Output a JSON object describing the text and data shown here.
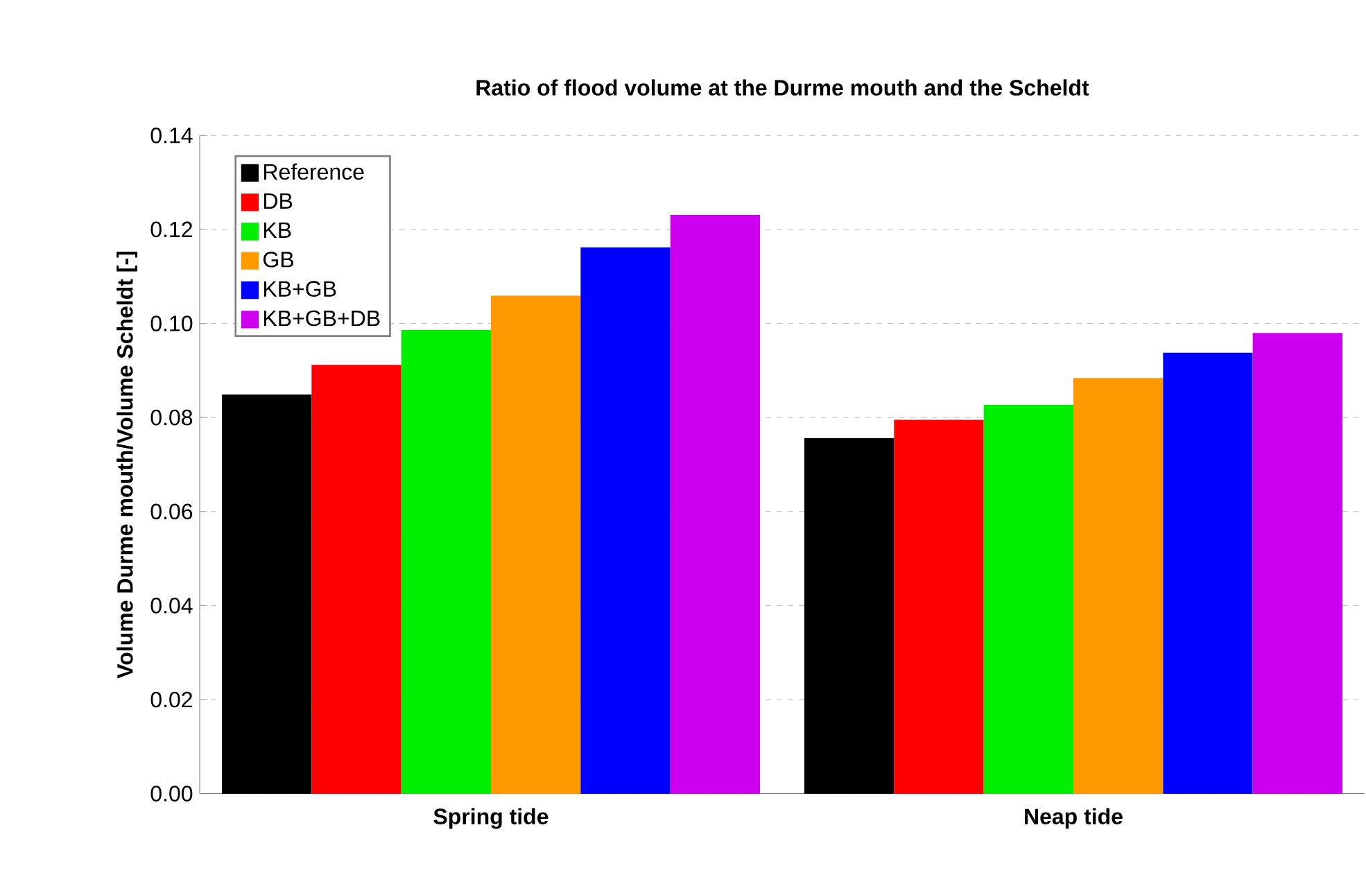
{
  "chart_data": {
    "type": "bar",
    "title": "Ratio of flood volume at the Durme mouth and the Scheldt",
    "ylabel": "Volume Durme mouth/Volume Scheldt [-]",
    "categories": [
      "Spring tide",
      "Neap tide"
    ],
    "series": [
      {
        "name": "Reference",
        "color": "#000000",
        "values": [
          0.0846,
          0.0753
        ]
      },
      {
        "name": "DB",
        "color": "#ff0000",
        "values": [
          0.0909,
          0.0792
        ]
      },
      {
        "name": "KB",
        "color": "#00ee00",
        "values": [
          0.0983,
          0.0824
        ]
      },
      {
        "name": "GB",
        "color": "#ff9900",
        "values": [
          0.1056,
          0.0881
        ]
      },
      {
        "name": "KB+GB",
        "color": "#0000ff",
        "values": [
          0.1159,
          0.0935
        ]
      },
      {
        "name": "KB+GB+DB",
        "color": "#cc00ee",
        "values": [
          0.1228,
          0.0977
        ]
      }
    ],
    "ylim": [
      0,
      0.14
    ],
    "yticks": [
      {
        "value": 0,
        "label": "0.00"
      },
      {
        "value": 0.02,
        "label": "0.02"
      },
      {
        "value": 0.04,
        "label": "0.04"
      },
      {
        "value": 0.06,
        "label": "0.06"
      },
      {
        "value": 0.08,
        "label": "0.08"
      },
      {
        "value": 0.1,
        "label": "0.10"
      },
      {
        "value": 0.12,
        "label": "0.12"
      },
      {
        "value": 0.14,
        "label": "0.14"
      }
    ],
    "grid": "y",
    "legend": "top left"
  }
}
